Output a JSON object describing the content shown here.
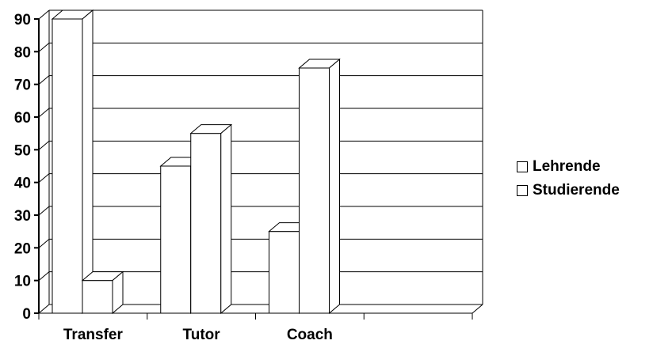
{
  "chart_data": {
    "type": "bar",
    "categories": [
      "Transfer",
      "Tutor",
      "Coach",
      ""
    ],
    "series": [
      {
        "name": "Lehrende",
        "values": [
          90,
          45,
          25,
          null
        ]
      },
      {
        "name": "Studierende",
        "values": [
          10,
          55,
          75,
          null
        ]
      }
    ],
    "y_ticks": [
      "0",
      "10",
      "20",
      "30",
      "40",
      "50",
      "60",
      "70",
      "80",
      "90"
    ],
    "ylim": [
      0,
      90
    ],
    "grid": true,
    "legend_position": "right",
    "colors": {
      "bar_fill": "#ffffff",
      "stroke": "#000000"
    }
  }
}
